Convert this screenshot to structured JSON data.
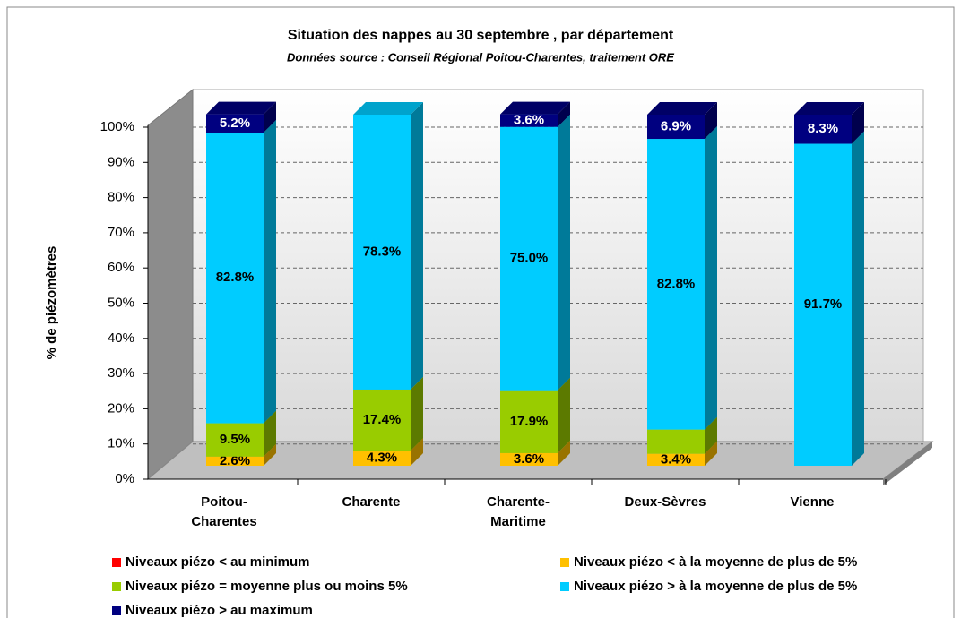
{
  "chart_data": {
    "type": "bar3d_stacked",
    "title": "Situation des nappes au 30 septembre , par département",
    "subtitle": "Données source : Conseil Régional Poitou-Charentes, traitement ORE",
    "y_label": "% de piézomètres",
    "categories": [
      "Poitou-Charentes",
      "Charente",
      "Charente-Maritime",
      "Deux-Sèvres",
      "Vienne"
    ],
    "series": [
      {
        "name": "Niveaux piézo < au minimum",
        "color": "#ff0000",
        "values": [
          0,
          0,
          0,
          0,
          0
        ],
        "value_labels": [
          null,
          null,
          null,
          null,
          null
        ]
      },
      {
        "name": "Niveaux piézo < à la moyenne de plus de 5%",
        "color": "#ffc000",
        "values": [
          2.6,
          4.3,
          3.6,
          3.4,
          0
        ],
        "value_labels": [
          "2.6%",
          "4.3%",
          "3.6%",
          "3.4%",
          null
        ]
      },
      {
        "name": "Niveaux piézo = moyenne plus ou moins 5%",
        "color": "#99cc00",
        "values": [
          9.5,
          17.4,
          17.9,
          6.9,
          0
        ],
        "value_labels": [
          "9.5%",
          "17.4%",
          "17.9%",
          null,
          null
        ]
      },
      {
        "name": "Niveaux piézo > à la moyenne de plus de 5%",
        "color": "#00ccff",
        "values": [
          82.8,
          78.3,
          75.0,
          82.8,
          91.7
        ],
        "value_labels": [
          "82.8%",
          "78.3%",
          "75.0%",
          "82.8%",
          "91.7%"
        ]
      },
      {
        "name": "Niveaux piézo > au maximum",
        "color": "#000080",
        "values": [
          5.2,
          0,
          3.6,
          6.9,
          8.3
        ],
        "value_labels": [
          "5.2%",
          null,
          "3.6%",
          "6.9%",
          "8.3%"
        ]
      }
    ],
    "ylim": [
      0,
      100
    ],
    "yticks": [
      {
        "value": 0,
        "label": "0%"
      },
      {
        "value": 10,
        "label": "10%"
      },
      {
        "value": 20,
        "label": "20%"
      },
      {
        "value": 30,
        "label": "30%"
      },
      {
        "value": 40,
        "label": "40%"
      },
      {
        "value": 50,
        "label": "50%"
      },
      {
        "value": 60,
        "label": "60%"
      },
      {
        "value": 70,
        "label": "70%"
      },
      {
        "value": 80,
        "label": "80%"
      },
      {
        "value": 90,
        "label": "90%"
      },
      {
        "value": 100,
        "label": "100%"
      }
    ],
    "grid": true
  }
}
